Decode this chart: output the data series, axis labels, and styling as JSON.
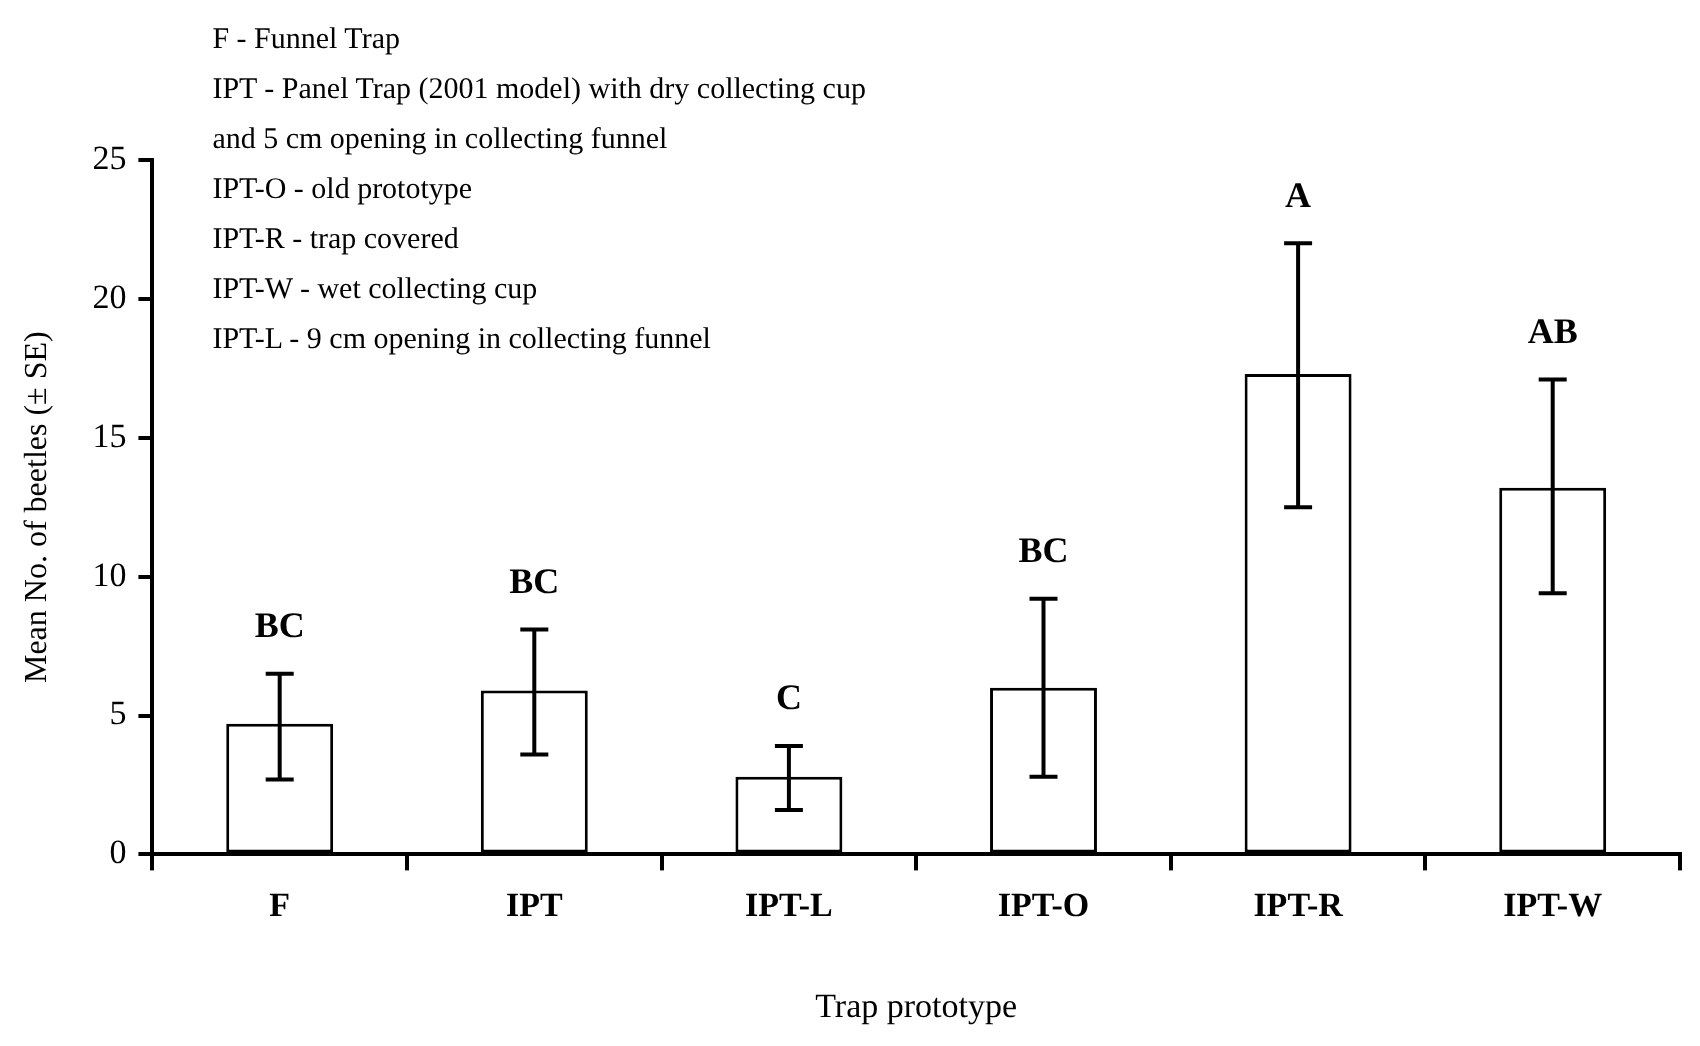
{
  "chart_data": {
    "type": "bar",
    "xlabel": "Trap prototype",
    "ylabel": "Mean No. of beetles (± SE)",
    "categories": [
      "F",
      "IPT",
      "IPT-L",
      "IPT-O",
      "IPT-R",
      "IPT-W"
    ],
    "values": [
      4.7,
      5.9,
      2.8,
      6.0,
      17.3,
      13.2
    ],
    "errors": [
      [
        2.7,
        6.5
      ],
      [
        3.6,
        8.1
      ],
      [
        1.6,
        3.9
      ],
      [
        2.8,
        9.2
      ],
      [
        12.5,
        22.0
      ],
      [
        9.4,
        17.1
      ]
    ],
    "color": "#ffffff",
    "ylim": [
      0,
      25
    ],
    "yticks": [
      0,
      5,
      10,
      15,
      20,
      25
    ],
    "grid": false,
    "legend": false,
    "annotations": [
      "F - Funnel Trap",
      "IPT - Panel Trap (2001 model) with dry collecting cup and 5 cm opening in collecting funnel",
      "IPT-O - old prototype",
      "IPT-R - trap covered",
      "IPT-W - wet collecting cup",
      "IPT-L - 9 cm opening in collecting funnel",
      {
        "text": "BC",
        "x": "F",
        "y": 6.5
      },
      {
        "text": "BC",
        "x": "IPT",
        "y": 8.1
      },
      {
        "text": "C",
        "x": "IPT-L",
        "y": 3.9
      },
      {
        "text": "BC",
        "x": "IPT-O",
        "y": 9.2
      },
      {
        "text": "A",
        "x": "IPT-R",
        "y": 22.0
      },
      {
        "text": "AB",
        "x": "IPT-W",
        "y": 17.1
      }
    ]
  }
}
